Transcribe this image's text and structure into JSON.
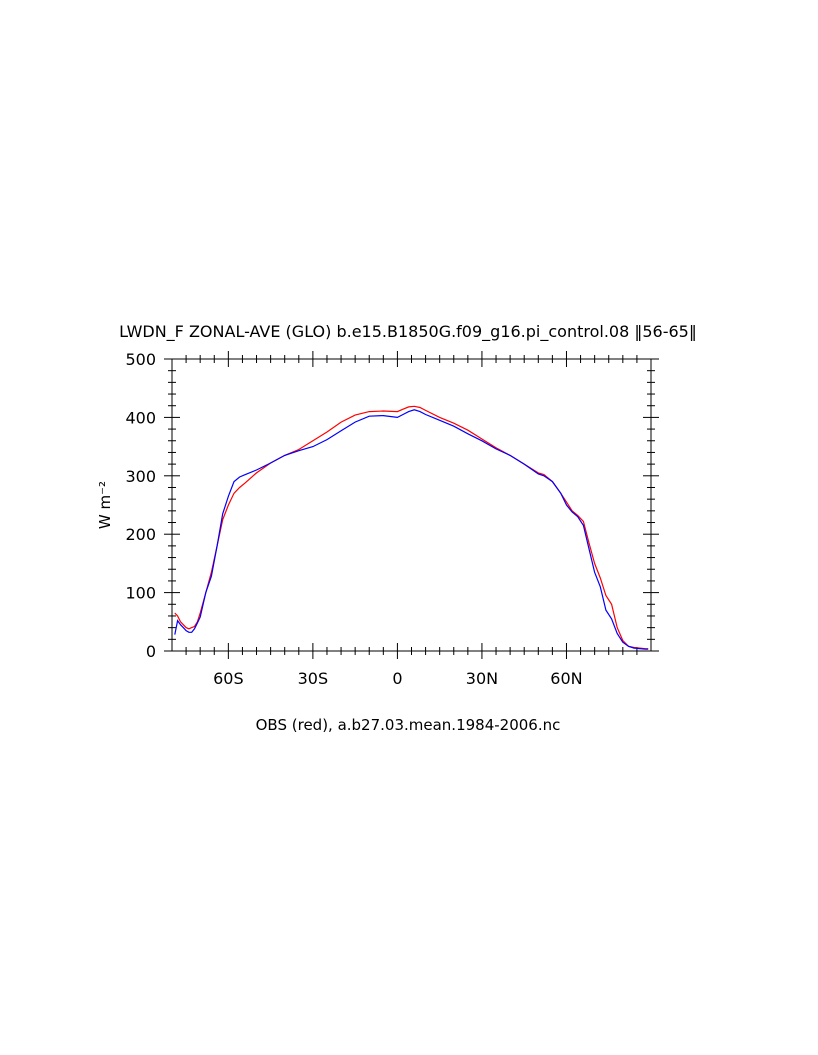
{
  "chart_data": {
    "type": "line",
    "title": "LWDN_F ZONAL-AVE (GLO) b.e15.B1850G.f09_g16.pi_control.08 ‖56-65‖",
    "xlabel": "OBS (red), a.b27.03.mean.1984-2006.nc",
    "ylabel": "W m⁻²",
    "xlim": [
      -80,
      90
    ],
    "ylim": [
      0,
      500
    ],
    "x_ticks": [
      {
        "value": -60,
        "label": "60S"
      },
      {
        "value": -30,
        "label": "30S"
      },
      {
        "value": 0,
        "label": "0"
      },
      {
        "value": 30,
        "label": "30N"
      },
      {
        "value": 60,
        "label": "60N"
      }
    ],
    "y_ticks": [
      {
        "value": 0,
        "label": "0"
      },
      {
        "value": 100,
        "label": "100"
      },
      {
        "value": 200,
        "label": "200"
      },
      {
        "value": 300,
        "label": "300"
      },
      {
        "value": 400,
        "label": "400"
      },
      {
        "value": 500,
        "label": "500"
      }
    ],
    "grid": false,
    "series": [
      {
        "color": "#ff0000",
        "x": [
          -79,
          -78,
          -77,
          -76,
          -75,
          -74,
          -73,
          -72,
          -71,
          -70,
          -68,
          -66,
          -64,
          -62,
          -60,
          -58,
          -56,
          -54,
          -50,
          -45,
          -40,
          -35,
          -30,
          -25,
          -20,
          -15,
          -10,
          -5,
          0,
          2,
          4,
          6,
          8,
          10,
          15,
          20,
          25,
          30,
          35,
          40,
          45,
          50,
          52,
          55,
          58,
          60,
          62,
          64,
          66,
          68,
          70,
          72,
          74,
          76,
          78,
          80,
          82,
          84,
          86,
          88,
          89
        ],
        "y": [
          65,
          60,
          50,
          45,
          40,
          38,
          40,
          42,
          50,
          65,
          100,
          135,
          180,
          225,
          250,
          270,
          280,
          288,
          305,
          322,
          335,
          345,
          360,
          375,
          392,
          404,
          410,
          411,
          410,
          414,
          418,
          419,
          417,
          412,
          400,
          390,
          378,
          363,
          348,
          335,
          320,
          305,
          302,
          290,
          270,
          255,
          240,
          232,
          222,
          185,
          150,
          125,
          95,
          80,
          40,
          18,
          8,
          6,
          5,
          4,
          4
        ]
      },
      {
        "color": "#0000ff",
        "x": [
          -79,
          -78,
          -77,
          -76,
          -75,
          -74,
          -73,
          -72,
          -71,
          -70,
          -68,
          -66,
          -64,
          -62,
          -60,
          -58,
          -56,
          -54,
          -50,
          -45,
          -40,
          -35,
          -30,
          -25,
          -20,
          -15,
          -10,
          -5,
          0,
          2,
          4,
          6,
          8,
          10,
          15,
          20,
          25,
          30,
          35,
          40,
          45,
          50,
          52,
          55,
          58,
          60,
          62,
          64,
          66,
          68,
          70,
          72,
          74,
          76,
          78,
          80,
          82,
          84,
          86,
          88,
          89
        ],
        "y": [
          28,
          52,
          45,
          40,
          35,
          32,
          32,
          38,
          48,
          58,
          100,
          128,
          180,
          235,
          265,
          290,
          298,
          302,
          310,
          322,
          335,
          343,
          350,
          362,
          377,
          392,
          402,
          403,
          400,
          405,
          410,
          413,
          410,
          405,
          395,
          385,
          372,
          360,
          346,
          335,
          320,
          303,
          300,
          290,
          270,
          250,
          238,
          230,
          215,
          175,
          135,
          110,
          70,
          55,
          30,
          15,
          8,
          5,
          4,
          3,
          3
        ]
      }
    ]
  }
}
